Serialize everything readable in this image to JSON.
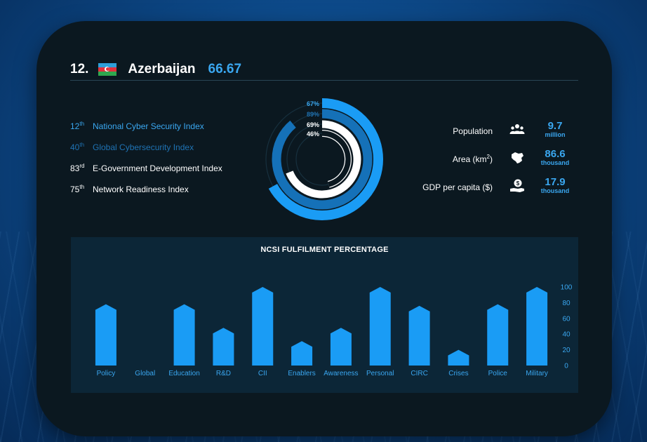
{
  "header": {
    "rank": "12.",
    "country": "Azerbaijan",
    "score": "66.67"
  },
  "indices": [
    {
      "rank_num": "12",
      "rank_suffix": "th",
      "label": "National Cyber Security Index",
      "color": "#3aa7f0"
    },
    {
      "rank_num": "40",
      "rank_suffix": "th",
      "label": "Global Cybersecurity Index",
      "color": "#1f73b4"
    },
    {
      "rank_num": "83",
      "rank_suffix": "rd",
      "label": "E-Government Development Index",
      "color": "#ffffff"
    },
    {
      "rank_num": "75",
      "rank_suffix": "th",
      "label": "Network Readiness Index",
      "color": "#ffffff"
    }
  ],
  "rings": [
    {
      "label": "67%",
      "value": 67,
      "color": "#1a9cf5",
      "label_color": "#3aa7f0"
    },
    {
      "label": "89%",
      "value": 89,
      "color": "#1571b8",
      "label_color": "#1f73b4"
    },
    {
      "label": "69%",
      "value": 69,
      "color": "#ffffff",
      "label_color": "#ffffff"
    },
    {
      "label": "46%",
      "value": 46,
      "color": "#0b1820",
      "outline": "#ffffff",
      "label_color": "#ffffff"
    }
  ],
  "stats": [
    {
      "label_main": "Population",
      "label_sup": "",
      "label_after": "",
      "icon": "population-icon",
      "value": "9.7",
      "unit": "million"
    },
    {
      "label_main": "Area (km",
      "label_sup": "2",
      "label_after": ")",
      "icon": "map-icon",
      "value": "86.6",
      "unit": "thousand"
    },
    {
      "label_main": "GDP per capita ($)",
      "label_sup": "",
      "label_after": "",
      "icon": "money-hand-icon",
      "value": "17.9",
      "unit": "thousand"
    }
  ],
  "chart_data": {
    "type": "bar",
    "title": "NCSI FULFILMENT PERCENTAGE",
    "categories": [
      "Policy",
      "Global",
      "Education",
      "R&D",
      "CII",
      "Enablers",
      "Awareness",
      "Personal",
      "CIRC",
      "Crises",
      "Police",
      "Military"
    ],
    "values": [
      78,
      0,
      78,
      48,
      100,
      31,
      48,
      100,
      76,
      20,
      78,
      100
    ],
    "ylim": [
      0,
      100
    ],
    "yticks": [
      0,
      20,
      40,
      60,
      80,
      100
    ],
    "xlabel": "",
    "ylabel": "",
    "grid": false,
    "bar_color": "#1a9cf5",
    "label_color": "#3aa7f0"
  }
}
